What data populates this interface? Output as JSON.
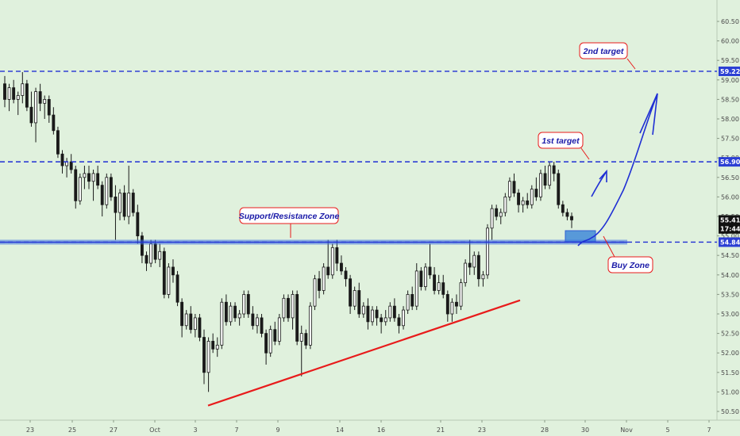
{
  "chart_data": {
    "type": "candlestick",
    "y_axis": {
      "ticks": [
        "60.50",
        "60.00",
        "59.50",
        "59.00",
        "58.50",
        "58.00",
        "57.50",
        "57.00",
        "56.50",
        "56.00",
        "55.50",
        "55.00",
        "54.50",
        "54.00",
        "53.50",
        "53.00",
        "52.50",
        "52.00",
        "51.50",
        "51.00",
        "50.50"
      ],
      "range": [
        50.3,
        60.9
      ]
    },
    "x_axis": {
      "ticks": [
        "23",
        "25",
        "27",
        "Oct",
        "3",
        "5",
        "7",
        "9",
        "12",
        "14",
        "16",
        "19",
        "21",
        "23",
        "26",
        "28",
        "30",
        "Nov",
        "5",
        "7"
      ],
      "visible_labels": [
        "23",
        "25",
        "27",
        "Oct",
        "3",
        "7",
        "9",
        "14",
        "16",
        "21",
        "23",
        "28",
        "30",
        "Nov",
        "5",
        "7"
      ]
    },
    "price_tags": [
      {
        "value": "59.22",
        "bg": "#2b3fd4",
        "fg": "#ffffff",
        "level": 59.22
      },
      {
        "value": "56.90",
        "bg": "#2b3fd4",
        "fg": "#ffffff",
        "level": 56.9
      },
      {
        "value": "55.41",
        "bg": "#111111",
        "fg": "#ffffff",
        "level": 55.41
      },
      {
        "value": "17:44",
        "bg": "#111111",
        "fg": "#ffffff",
        "level": 55.18
      },
      {
        "value": "54.84",
        "bg": "#2b3fd4",
        "fg": "#ffffff",
        "level": 54.84
      }
    ],
    "levels": [
      {
        "name": "2nd target",
        "value": 59.22
      },
      {
        "name": "1st target",
        "value": 56.9
      },
      {
        "name": "Support/Resistance Zone",
        "value": 54.84
      }
    ],
    "annotations": {
      "second_target": "2nd target",
      "first_target": "1st target",
      "support_zone": "Support/Resistance Zone",
      "buy_zone": "Buy Zone"
    },
    "trendline": {
      "start_value": 50.65,
      "end_value": 53.35
    },
    "candles": [
      [
        58.9,
        59.1,
        58.3,
        58.5
      ],
      [
        58.5,
        58.9,
        58.2,
        58.8
      ],
      [
        58.8,
        59.0,
        58.4,
        58.5
      ],
      [
        58.5,
        58.7,
        58.1,
        58.6
      ],
      [
        58.6,
        59.2,
        58.4,
        58.9
      ],
      [
        58.9,
        59.0,
        58.2,
        58.3
      ],
      [
        58.3,
        58.7,
        57.8,
        57.9
      ],
      [
        57.9,
        58.8,
        57.4,
        58.7
      ],
      [
        58.7,
        58.9,
        58.2,
        58.4
      ],
      [
        58.4,
        58.6,
        58.0,
        58.5
      ],
      [
        58.5,
        58.6,
        57.9,
        58.1
      ],
      [
        58.1,
        58.3,
        57.6,
        57.7
      ],
      [
        57.7,
        57.8,
        57.0,
        57.1
      ],
      [
        57.1,
        57.2,
        56.6,
        56.8
      ],
      [
        56.8,
        57.0,
        56.5,
        56.9
      ],
      [
        56.9,
        57.1,
        56.6,
        56.7
      ],
      [
        56.7,
        56.8,
        55.7,
        55.9
      ],
      [
        55.9,
        56.6,
        55.8,
        56.5
      ],
      [
        56.5,
        56.8,
        56.2,
        56.6
      ],
      [
        56.6,
        56.8,
        56.2,
        56.4
      ],
      [
        56.4,
        56.7,
        55.9,
        56.6
      ],
      [
        56.6,
        56.8,
        56.2,
        56.3
      ],
      [
        56.3,
        56.4,
        55.5,
        55.8
      ],
      [
        55.8,
        56.6,
        55.7,
        56.5
      ],
      [
        56.5,
        56.6,
        55.9,
        56.0
      ],
      [
        56.0,
        56.3,
        54.9,
        55.6
      ],
      [
        55.6,
        56.2,
        55.4,
        56.1
      ],
      [
        56.1,
        56.3,
        55.4,
        55.5
      ],
      [
        55.5,
        56.8,
        55.3,
        56.1
      ],
      [
        56.1,
        56.2,
        55.5,
        55.6
      ],
      [
        55.6,
        55.8,
        54.8,
        55.0
      ],
      [
        55.0,
        55.1,
        54.3,
        54.5
      ],
      [
        54.5,
        54.6,
        54.1,
        54.3
      ],
      [
        54.3,
        54.9,
        54.2,
        54.8
      ],
      [
        54.8,
        54.9,
        54.3,
        54.4
      ],
      [
        54.4,
        54.8,
        54.2,
        54.6
      ],
      [
        54.6,
        54.7,
        53.4,
        53.5
      ],
      [
        53.5,
        54.3,
        53.4,
        54.2
      ],
      [
        54.2,
        54.4,
        53.8,
        54.0
      ],
      [
        54.0,
        54.1,
        53.2,
        53.3
      ],
      [
        53.3,
        53.4,
        52.4,
        52.7
      ],
      [
        52.7,
        53.1,
        52.6,
        53.0
      ],
      [
        53.0,
        53.2,
        52.5,
        52.6
      ],
      [
        52.6,
        53.0,
        52.4,
        52.9
      ],
      [
        52.9,
        53.0,
        52.3,
        52.4
      ],
      [
        52.4,
        52.6,
        51.2,
        51.5
      ],
      [
        51.5,
        52.4,
        51.0,
        52.3
      ],
      [
        52.3,
        52.5,
        52.0,
        52.1
      ],
      [
        52.1,
        52.4,
        51.9,
        52.2
      ],
      [
        52.2,
        53.4,
        52.1,
        53.3
      ],
      [
        53.3,
        53.5,
        52.7,
        52.8
      ],
      [
        52.8,
        53.3,
        52.7,
        53.2
      ],
      [
        53.2,
        53.3,
        52.8,
        52.9
      ],
      [
        52.9,
        53.1,
        52.7,
        53.0
      ],
      [
        53.0,
        53.6,
        52.9,
        53.5
      ],
      [
        53.5,
        53.6,
        52.9,
        53.0
      ],
      [
        53.0,
        53.2,
        52.6,
        52.7
      ],
      [
        52.7,
        53.0,
        52.5,
        52.9
      ],
      [
        52.9,
        53.0,
        52.4,
        52.5
      ],
      [
        52.5,
        52.6,
        51.7,
        52.0
      ],
      [
        52.0,
        52.7,
        51.9,
        52.6
      ],
      [
        52.6,
        52.8,
        52.2,
        52.3
      ],
      [
        52.3,
        53.0,
        52.2,
        52.9
      ],
      [
        52.9,
        53.5,
        52.8,
        53.4
      ],
      [
        53.4,
        53.5,
        52.8,
        52.9
      ],
      [
        52.9,
        53.6,
        52.6,
        53.5
      ],
      [
        53.5,
        53.6,
        52.2,
        52.3
      ],
      [
        52.3,
        52.7,
        51.4,
        52.5
      ],
      [
        52.5,
        52.6,
        52.1,
        52.2
      ],
      [
        52.2,
        53.3,
        52.1,
        53.2
      ],
      [
        53.2,
        54.0,
        53.1,
        53.9
      ],
      [
        53.9,
        54.1,
        53.4,
        53.6
      ],
      [
        53.6,
        54.3,
        53.5,
        54.2
      ],
      [
        54.2,
        54.9,
        53.9,
        54.0
      ],
      [
        54.0,
        54.8,
        53.9,
        54.7
      ],
      [
        54.7,
        54.9,
        54.1,
        54.3
      ],
      [
        54.3,
        54.5,
        54.0,
        54.1
      ],
      [
        54.1,
        54.2,
        53.7,
        53.9
      ],
      [
        53.9,
        54.0,
        53.0,
        53.2
      ],
      [
        53.2,
        53.7,
        53.1,
        53.6
      ],
      [
        53.6,
        53.8,
        52.9,
        53.0
      ],
      [
        53.0,
        53.3,
        52.9,
        53.2
      ],
      [
        53.2,
        53.4,
        52.6,
        52.8
      ],
      [
        52.8,
        53.2,
        52.7,
        53.1
      ],
      [
        53.1,
        53.2,
        52.7,
        52.9
      ],
      [
        52.9,
        53.0,
        52.5,
        52.8
      ],
      [
        52.8,
        53.1,
        52.7,
        52.9
      ],
      [
        52.9,
        53.3,
        52.8,
        53.2
      ],
      [
        53.2,
        53.4,
        52.8,
        52.9
      ],
      [
        52.9,
        53.0,
        52.5,
        52.7
      ],
      [
        52.7,
        53.2,
        52.6,
        53.1
      ],
      [
        53.1,
        53.6,
        53.0,
        53.5
      ],
      [
        53.5,
        53.7,
        53.1,
        53.2
      ],
      [
        53.2,
        54.3,
        53.1,
        54.1
      ],
      [
        54.1,
        54.2,
        53.6,
        53.7
      ],
      [
        53.7,
        54.3,
        53.6,
        54.2
      ],
      [
        54.2,
        54.8,
        53.9,
        54.0
      ],
      [
        54.0,
        54.2,
        53.5,
        53.6
      ],
      [
        53.6,
        54.0,
        53.5,
        53.8
      ],
      [
        53.8,
        54.0,
        53.4,
        53.5
      ],
      [
        53.5,
        53.6,
        52.8,
        53.0
      ],
      [
        53.0,
        53.4,
        52.8,
        53.3
      ],
      [
        53.3,
        53.5,
        53.0,
        53.2
      ],
      [
        53.2,
        53.9,
        53.1,
        53.8
      ],
      [
        53.8,
        54.4,
        53.7,
        54.3
      ],
      [
        54.3,
        54.9,
        54.0,
        54.2
      ],
      [
        54.2,
        54.6,
        54.0,
        54.5
      ],
      [
        54.5,
        54.6,
        53.7,
        53.9
      ],
      [
        53.9,
        54.1,
        53.7,
        54.0
      ],
      [
        54.0,
        55.3,
        53.9,
        55.2
      ],
      [
        55.2,
        55.8,
        54.9,
        55.7
      ],
      [
        55.7,
        55.8,
        55.4,
        55.5
      ],
      [
        55.5,
        55.7,
        55.3,
        55.6
      ],
      [
        55.6,
        56.1,
        55.5,
        56.0
      ],
      [
        56.0,
        56.5,
        55.9,
        56.4
      ],
      [
        56.4,
        56.6,
        56.0,
        56.1
      ],
      [
        56.1,
        56.2,
        55.6,
        55.8
      ],
      [
        55.8,
        56.0,
        55.6,
        55.9
      ],
      [
        55.9,
        56.1,
        55.7,
        55.8
      ],
      [
        55.8,
        56.3,
        55.7,
        56.2
      ],
      [
        56.2,
        56.5,
        55.9,
        56.0
      ],
      [
        56.0,
        56.7,
        55.9,
        56.6
      ],
      [
        56.6,
        56.8,
        56.2,
        56.3
      ],
      [
        56.3,
        56.9,
        56.2,
        56.8
      ],
      [
        56.8,
        56.9,
        56.4,
        56.6
      ],
      [
        56.6,
        56.7,
        55.7,
        55.8
      ],
      [
        55.8,
        55.9,
        55.5,
        55.6
      ],
      [
        55.6,
        55.7,
        55.4,
        55.5
      ],
      [
        55.5,
        55.6,
        55.2,
        55.41
      ]
    ]
  }
}
